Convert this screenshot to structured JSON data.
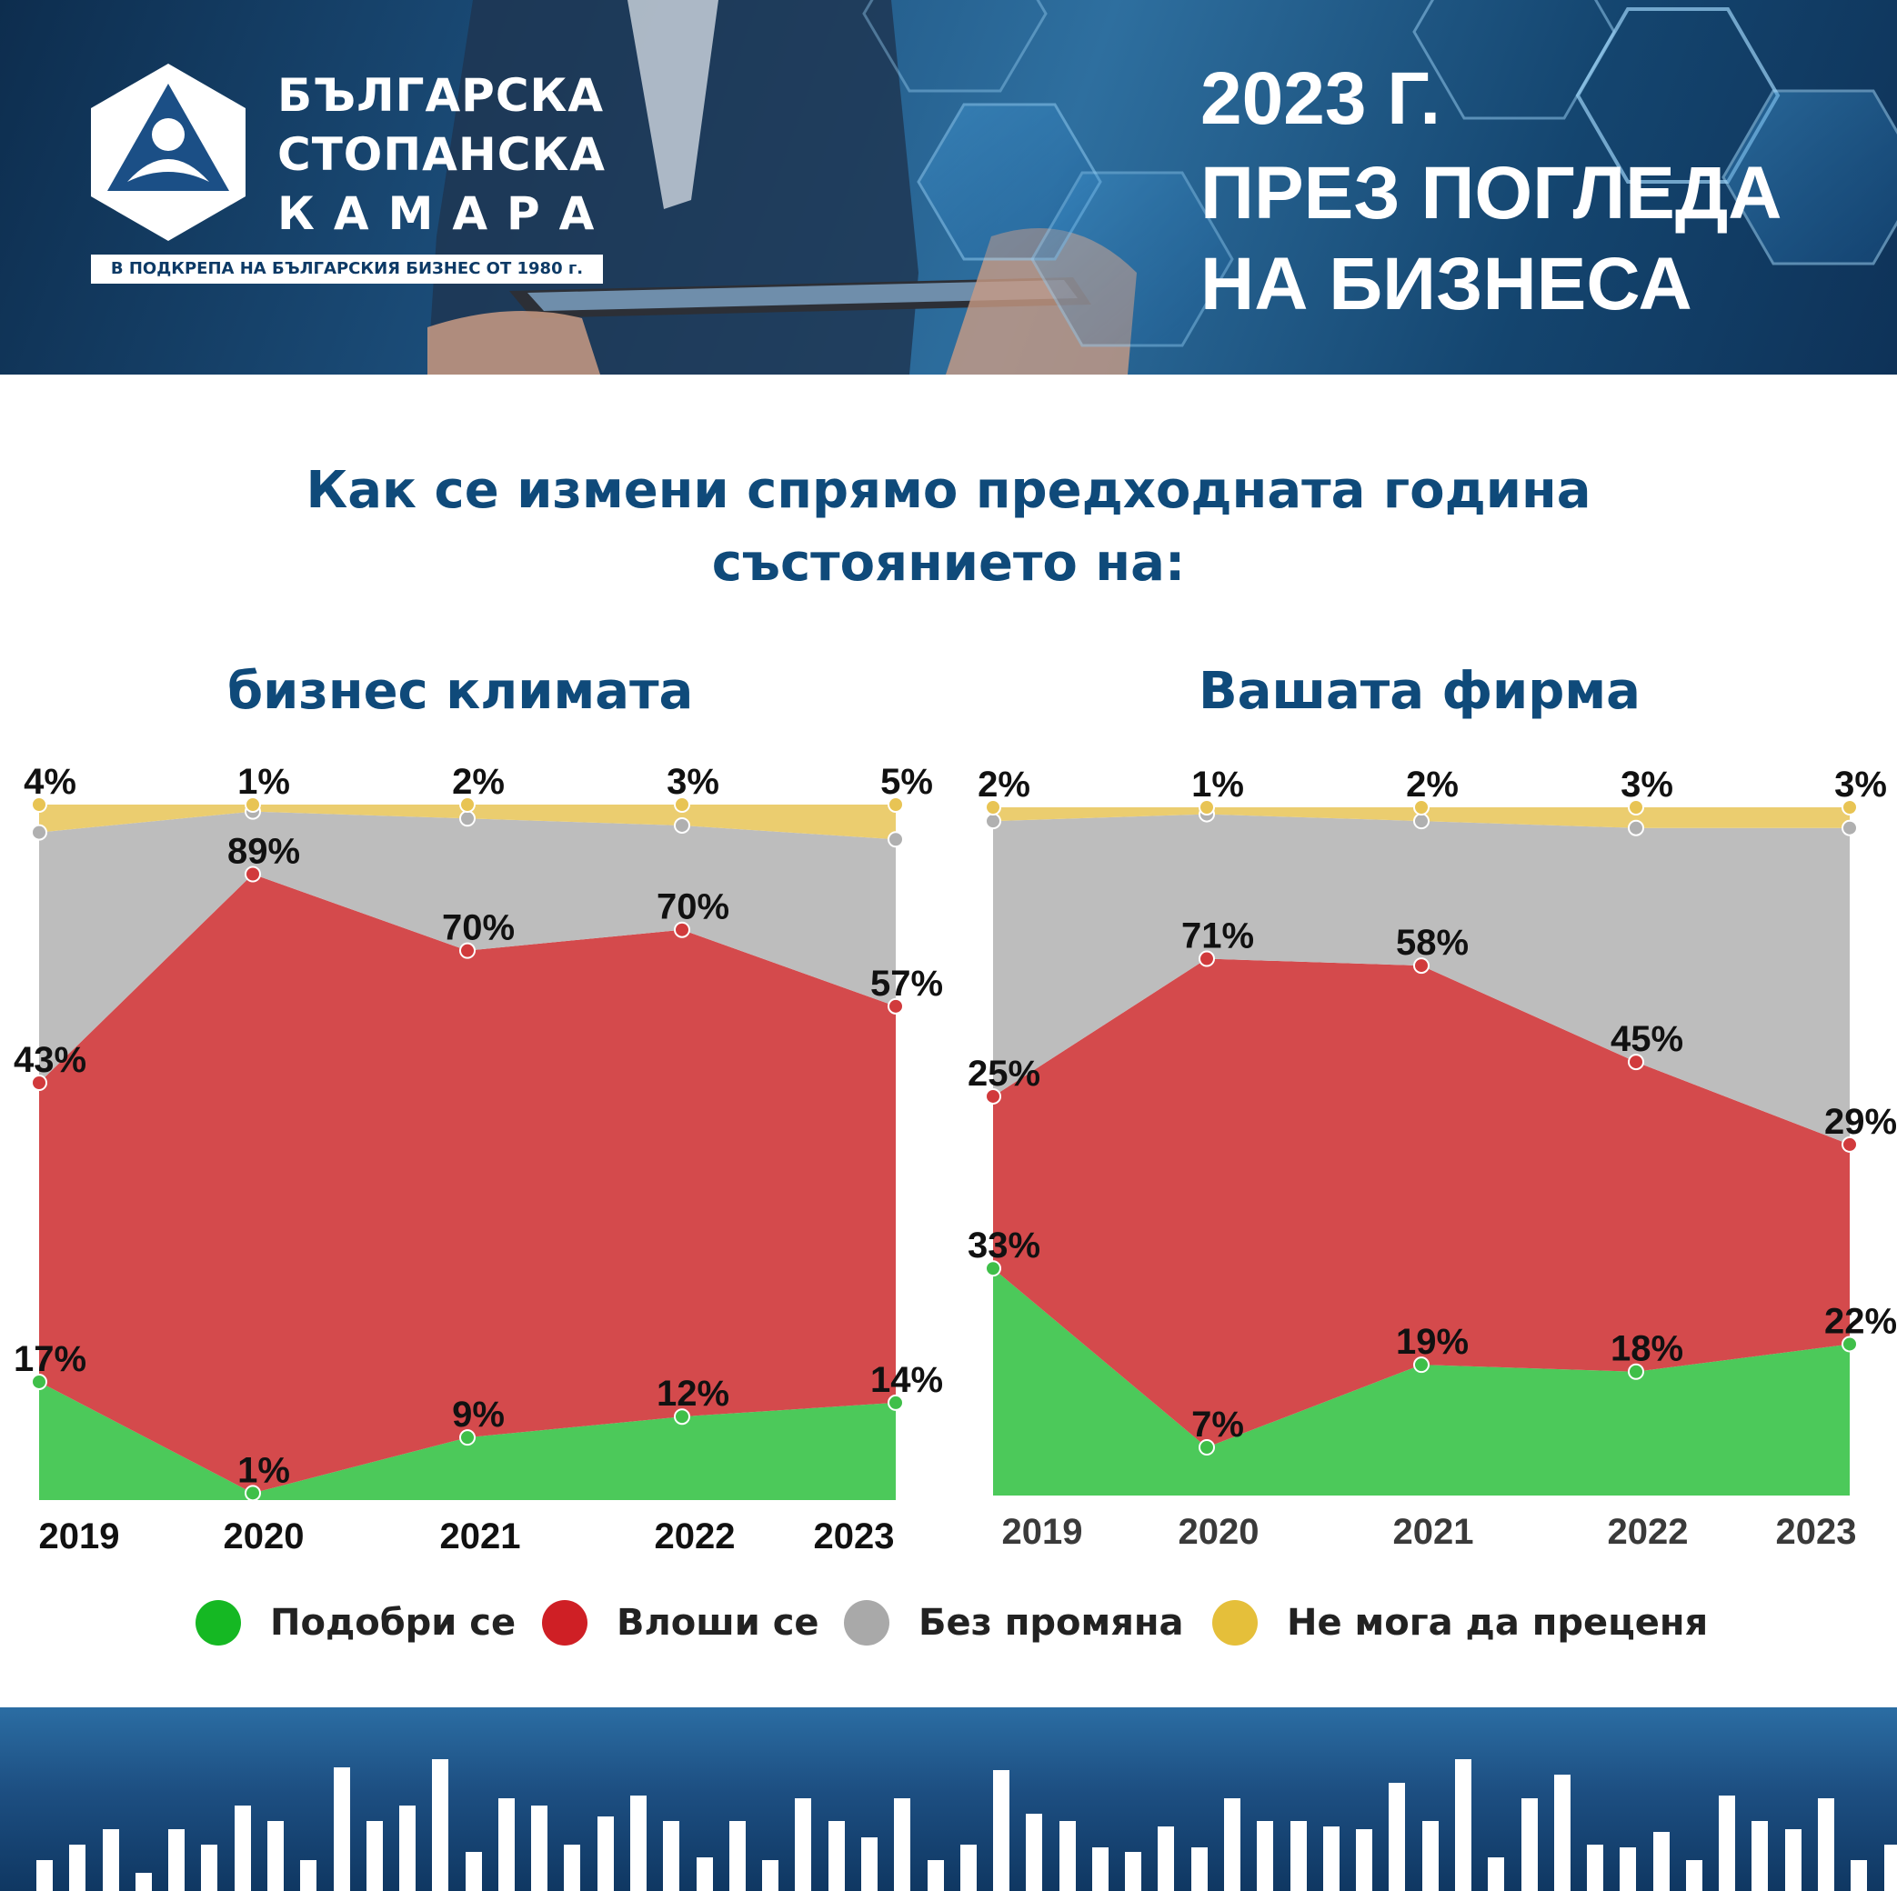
{
  "header": {
    "org_line1": "БЪЛГАРСКА",
    "org_line2": "СТОПАНСКА",
    "org_line3": "КАМАРА",
    "tagline": "В ПОДКРЕПА НА БЪЛГАРСКИЯ БИЗНЕС ОТ 1980 г.",
    "title_line1": "2023 Г.",
    "title_line2": "ПРЕЗ ПОГЛЕДА",
    "title_line3": "НА БИЗНЕСА"
  },
  "question": {
    "line1": "Как се измени спрямо предходната година",
    "line2": "състоянието на:"
  },
  "colors": {
    "improved": "#4cc95a",
    "worsened": "#d44a4c",
    "unchanged": "#bdbdbd",
    "cannot_judge": "#ebcd6f",
    "title_blue": "#0f4a7a"
  },
  "chart_data": [
    {
      "type": "area",
      "stacked": true,
      "title": "бизнес климата",
      "categories": [
        "2019",
        "2020",
        "2021",
        "2022",
        "2023"
      ],
      "series": [
        {
          "name": "Подобри се",
          "values": [
            17,
            1,
            9,
            12,
            14
          ],
          "labels": [
            "17%",
            "1%",
            "9%",
            "12%",
            "14%"
          ]
        },
        {
          "name": "Влоши се",
          "values": [
            43,
            89,
            70,
            70,
            57
          ],
          "labels": [
            "43%",
            "89%",
            "70%",
            "70%",
            "57%"
          ]
        },
        {
          "name": "Без промяна",
          "values": [
            36,
            9,
            19,
            15,
            24
          ]
        },
        {
          "name": "Не мога да преценя",
          "values": [
            4,
            1,
            2,
            3,
            5
          ],
          "labels": [
            "4%",
            "1%",
            "2%",
            "3%",
            "5%"
          ]
        }
      ],
      "ylim": [
        0,
        100
      ]
    },
    {
      "type": "area",
      "stacked": true,
      "title": "Вашата фирма",
      "categories": [
        "2019",
        "2020",
        "2021",
        "2022",
        "2023"
      ],
      "series": [
        {
          "name": "Подобри се",
          "values": [
            33,
            7,
            19,
            18,
            22
          ],
          "labels": [
            "33%",
            "7%",
            "19%",
            "18%",
            "22%"
          ]
        },
        {
          "name": "Влоши се",
          "values": [
            25,
            71,
            58,
            45,
            29
          ],
          "labels": [
            "25%",
            "71%",
            "58%",
            "45%",
            "29%"
          ]
        },
        {
          "name": "Без промяна",
          "values": [
            40,
            21,
            21,
            34,
            46
          ]
        },
        {
          "name": "Не мога да преценя",
          "values": [
            2,
            1,
            2,
            3,
            3
          ],
          "labels": [
            "2%",
            "1%",
            "2%",
            "3%",
            "3%"
          ]
        }
      ],
      "ylim": [
        0,
        100
      ]
    }
  ],
  "legend": {
    "items": [
      {
        "label": "Подобри се",
        "color": "#15b823"
      },
      {
        "label": "Влоши се",
        "color": "#cf1f25"
      },
      {
        "label": "Без промяна",
        "color": "#a9a9a9"
      },
      {
        "label": "Не мога да преценя",
        "color": "#e5bf3a"
      }
    ]
  },
  "footer": {
    "bar_heights": [
      0.2,
      0.3,
      0.4,
      0.12,
      0.4,
      0.3,
      0.55,
      0.45,
      0.2,
      0.8,
      0.45,
      0.55,
      0.85,
      0.25,
      0.6,
      0.55,
      0.3,
      0.48,
      0.62,
      0.45,
      0.22,
      0.45,
      0.2,
      0.6,
      0.45,
      0.35,
      0.6,
      0.2,
      0.3,
      0.78,
      0.5,
      0.45,
      0.28,
      0.25,
      0.42,
      0.28,
      0.6,
      0.45,
      0.45,
      0.42,
      0.4,
      0.7,
      0.45,
      0.85,
      0.22,
      0.6,
      0.75,
      0.3,
      0.28,
      0.38,
      0.2,
      0.62,
      0.45,
      0.4,
      0.6,
      0.2,
      0.3
    ]
  }
}
